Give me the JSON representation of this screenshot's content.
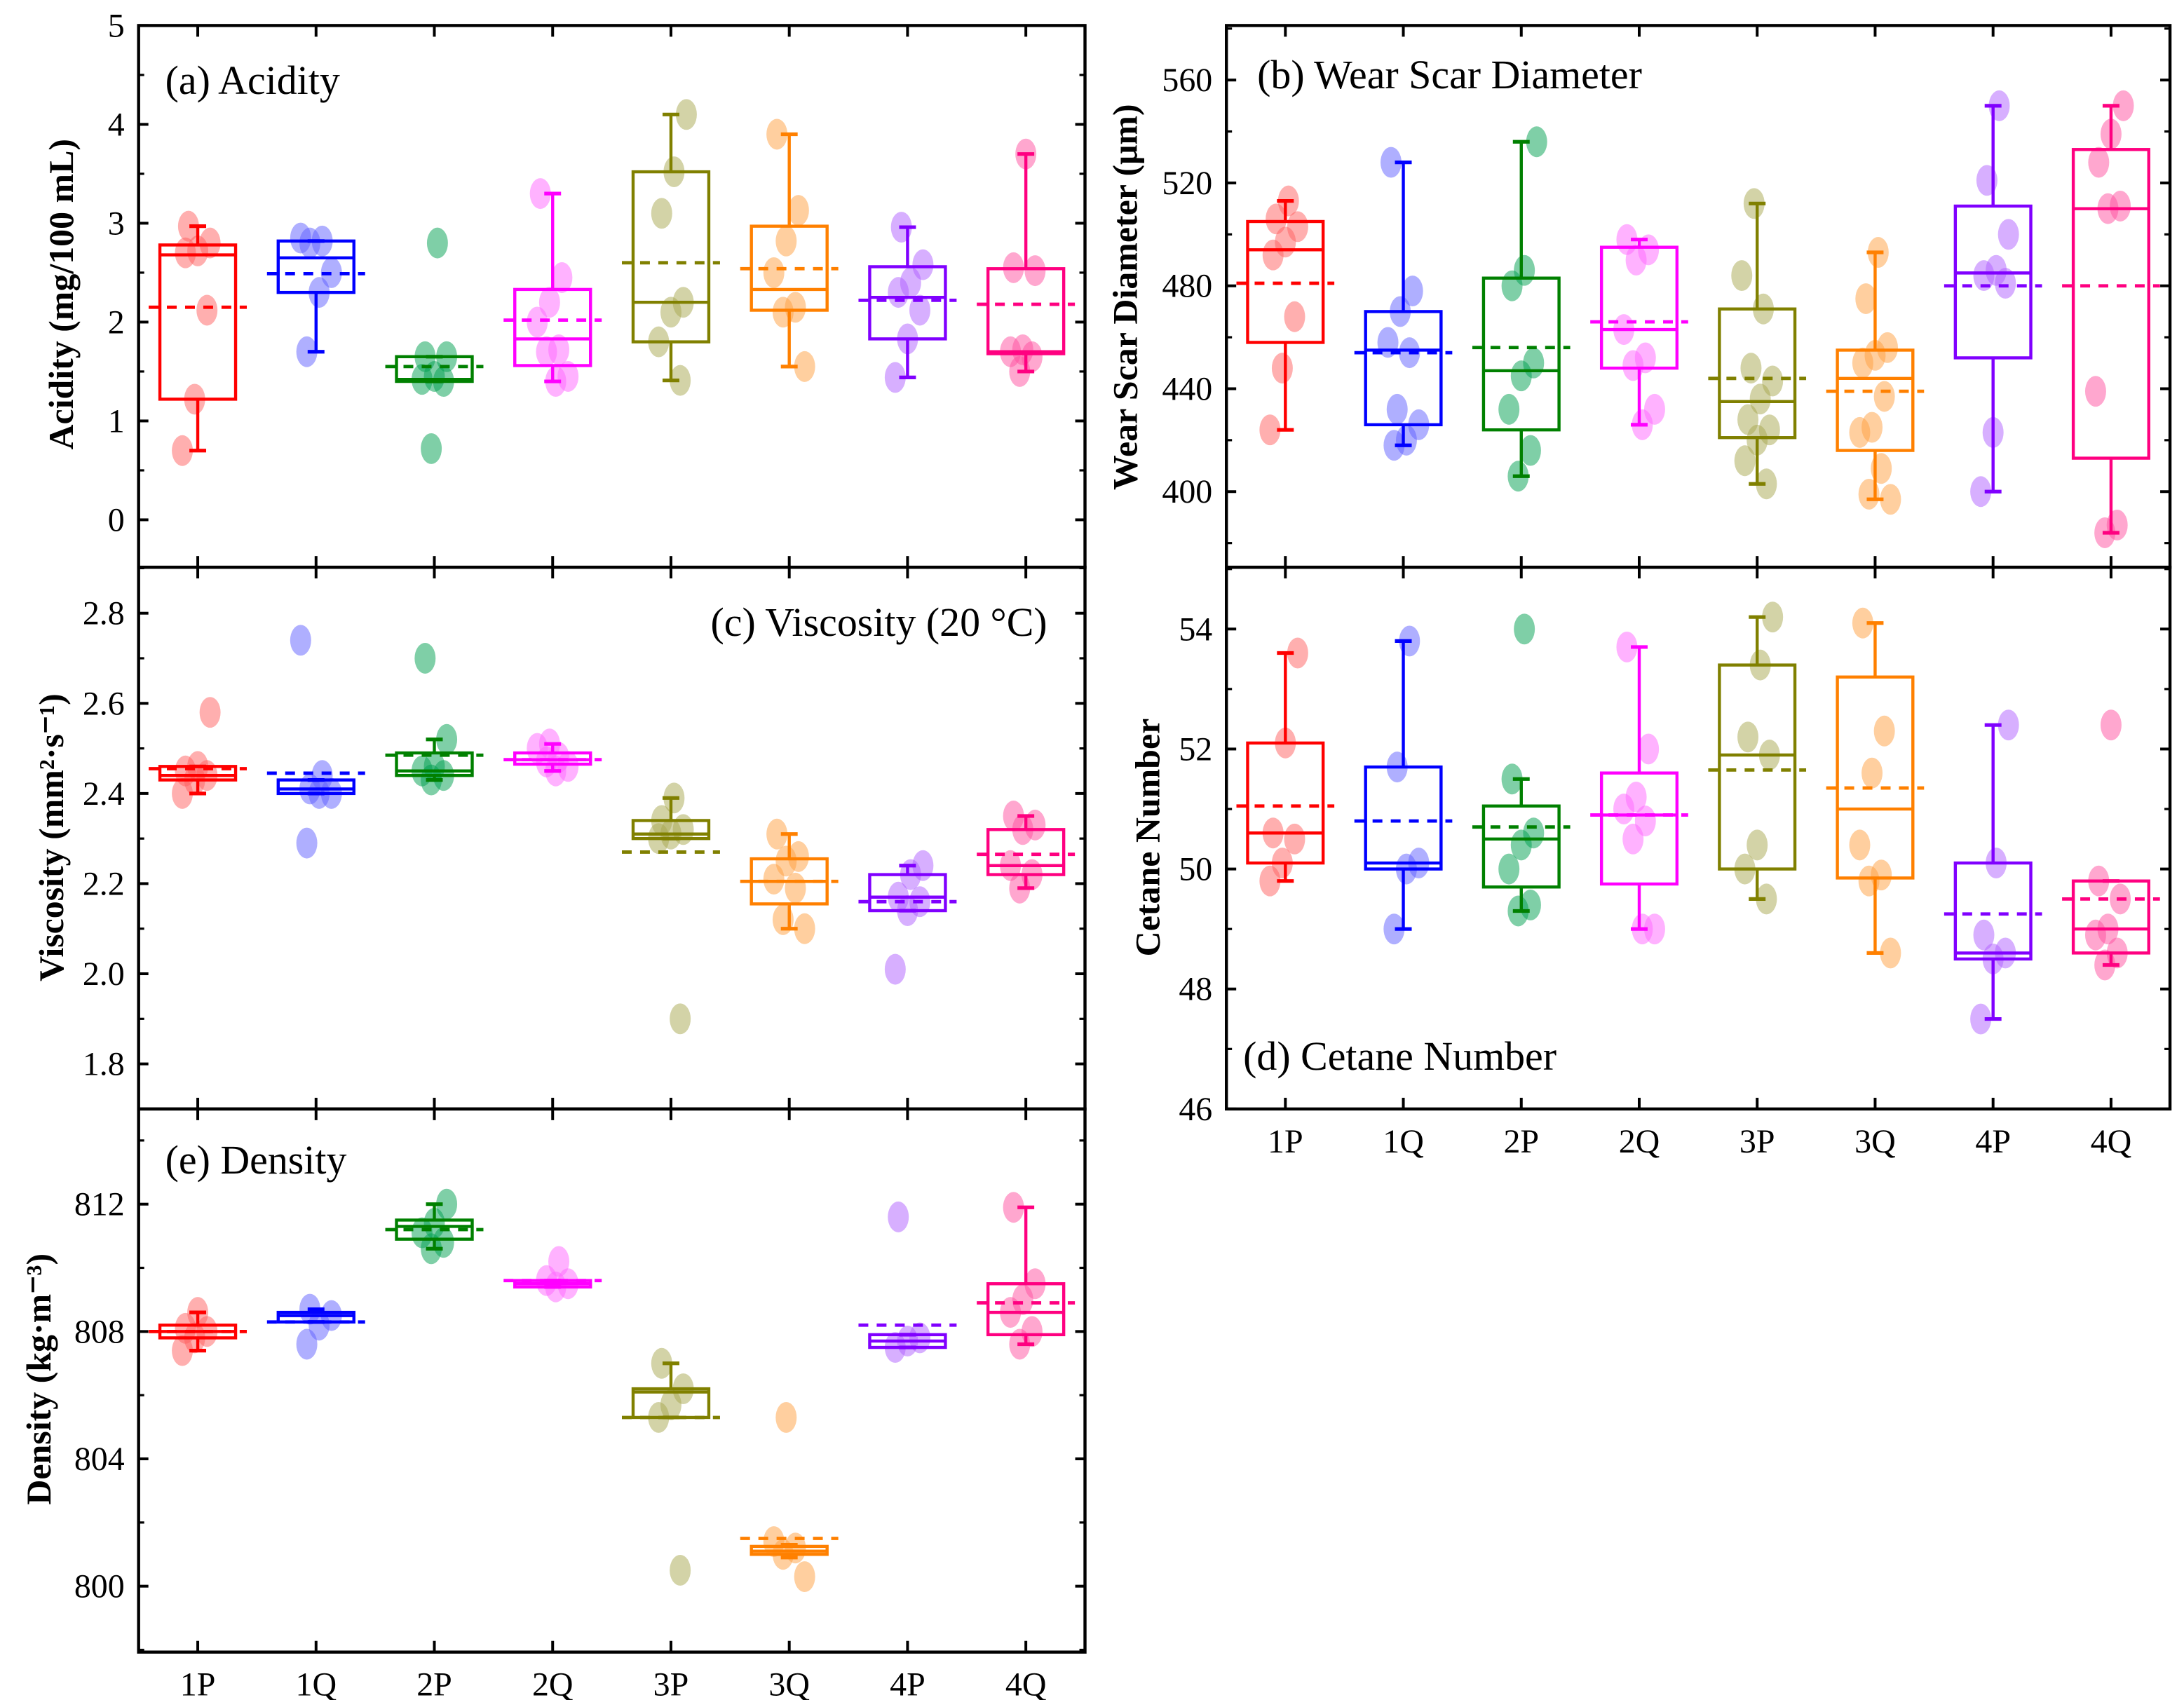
{
  "chart_data": [
    {
      "id": "a",
      "type": "box",
      "title": "(a) Acidity",
      "ylabel": "Acidity (mg/100 mL)",
      "ylim": [
        -0.48,
        5
      ],
      "yticks": [
        0,
        1,
        2,
        3,
        4,
        5
      ],
      "yminor": 0.5,
      "ytick_labels": [
        "0",
        "1",
        "2",
        "3",
        "4",
        "5"
      ],
      "categories": [
        "1P",
        "1Q",
        "2P",
        "2Q",
        "3P",
        "3Q",
        "4P",
        "4Q"
      ],
      "boxes": [
        {
          "q1": 1.22,
          "median": 2.68,
          "q3": 2.78,
          "whisker_low": 0.7,
          "whisker_high": 2.97,
          "mean": 2.15,
          "points": [
            0.7,
            1.22,
            2.12,
            2.7,
            2.72,
            2.8,
            2.97
          ]
        },
        {
          "q1": 2.3,
          "median": 2.65,
          "q3": 2.82,
          "whisker_low": 1.7,
          "whisker_high": 2.82,
          "mean": 2.49,
          "points": [
            1.7,
            2.3,
            2.5,
            2.8,
            2.82,
            2.85
          ]
        },
        {
          "q1": 1.4,
          "median": 1.42,
          "q3": 1.65,
          "whisker_low": 1.4,
          "whisker_high": 1.65,
          "mean": 1.55,
          "points": [
            0.72,
            1.4,
            1.42,
            1.45,
            1.65,
            1.65,
            2.8
          ]
        },
        {
          "q1": 1.56,
          "median": 1.83,
          "q3": 2.33,
          "whisker_low": 1.4,
          "whisker_high": 3.3,
          "mean": 2.02,
          "points": [
            1.4,
            1.45,
            1.7,
            1.72,
            2.0,
            2.2,
            2.45,
            3.3
          ]
        },
        {
          "q1": 1.8,
          "median": 2.2,
          "q3": 3.52,
          "whisker_low": 1.41,
          "whisker_high": 4.1,
          "mean": 2.6,
          "points": [
            1.41,
            1.8,
            2.1,
            2.2,
            3.1,
            3.52,
            4.1
          ]
        },
        {
          "q1": 2.12,
          "median": 2.33,
          "q3": 2.97,
          "whisker_low": 1.55,
          "whisker_high": 3.9,
          "mean": 2.54,
          "points": [
            1.55,
            2.1,
            2.15,
            2.5,
            2.82,
            3.13,
            3.9
          ]
        },
        {
          "q1": 1.83,
          "median": 2.25,
          "q3": 2.56,
          "whisker_low": 1.44,
          "whisker_high": 2.96,
          "mean": 2.22,
          "points": [
            1.44,
            1.83,
            2.12,
            2.3,
            2.4,
            2.58,
            2.96
          ]
        },
        {
          "q1": 1.68,
          "median": 1.7,
          "q3": 2.54,
          "whisker_low": 1.5,
          "whisker_high": 3.7,
          "mean": 2.18,
          "points": [
            1.5,
            1.65,
            1.7,
            1.72,
            2.52,
            2.55,
            3.7
          ]
        }
      ]
    },
    {
      "id": "b",
      "type": "box",
      "title": "(b) Wear Scar Diameter",
      "ylabel": "Wear Scar Diameter (μm)",
      "ylim": [
        370.6,
        581.2
      ],
      "yticks": [
        400,
        440,
        480,
        520,
        560
      ],
      "yminor": 20,
      "ytick_labels": [
        "400",
        "440",
        "480",
        "520",
        "560"
      ],
      "categories": [
        "1P",
        "1Q",
        "2P",
        "2Q",
        "3P",
        "3Q",
        "4P",
        "4Q"
      ],
      "boxes": [
        {
          "q1": 458,
          "median": 494,
          "q3": 505,
          "whisker_low": 424,
          "whisker_high": 513,
          "mean": 481,
          "points": [
            424,
            448,
            468,
            492,
            497,
            503,
            506,
            513
          ]
        },
        {
          "q1": 426,
          "median": 455,
          "q3": 470,
          "whisker_low": 418,
          "whisker_high": 528,
          "mean": 454,
          "points": [
            418,
            420,
            426,
            432,
            454,
            458,
            470,
            478,
            528
          ]
        },
        {
          "q1": 424,
          "median": 447,
          "q3": 483,
          "whisker_low": 406,
          "whisker_high": 536,
          "mean": 456,
          "points": [
            406,
            416,
            432,
            445,
            450,
            480,
            486,
            536
          ]
        },
        {
          "q1": 448,
          "median": 463,
          "q3": 495,
          "whisker_low": 426,
          "whisker_high": 498,
          "mean": 466,
          "points": [
            426,
            432,
            449,
            452,
            463,
            490,
            494,
            498
          ]
        },
        {
          "q1": 421,
          "median": 435,
          "q3": 471,
          "whisker_low": 403,
          "whisker_high": 512,
          "mean": 444,
          "points": [
            403,
            412,
            420,
            424,
            428,
            436,
            443,
            448,
            471,
            484,
            512
          ]
        },
        {
          "q1": 416,
          "median": 444,
          "q3": 455,
          "whisker_low": 397,
          "whisker_high": 493,
          "mean": 439,
          "points": [
            397,
            399,
            409,
            423,
            425,
            437,
            450,
            453,
            456,
            475,
            493
          ]
        },
        {
          "q1": 452,
          "median": 485,
          "q3": 511,
          "whisker_low": 400,
          "whisker_high": 550,
          "mean": 480,
          "points": [
            400,
            423,
            481,
            484,
            486,
            500,
            521,
            550
          ]
        },
        {
          "q1": 413,
          "median": 510,
          "q3": 533,
          "whisker_low": 384,
          "whisker_high": 550,
          "mean": 480,
          "points": [
            384,
            387,
            439,
            510,
            511,
            528,
            539,
            550
          ]
        }
      ]
    },
    {
      "id": "c",
      "type": "box",
      "title": "(c) Viscosity (20 °C)",
      "ylabel": "Viscosity (mm²·s⁻¹)",
      "ylim": [
        1.7,
        2.902
      ],
      "yticks": [
        1.8,
        2.0,
        2.2,
        2.4,
        2.6,
        2.8
      ],
      "yminor": 0.1,
      "ytick_labels": [
        "1.8",
        "2.0",
        "2.2",
        "2.4",
        "2.6",
        "2.8"
      ],
      "categories": [
        "1P",
        "1Q",
        "2P",
        "2Q",
        "3P",
        "3Q",
        "4P",
        "4Q"
      ],
      "boxes": [
        {
          "q1": 2.43,
          "median": 2.44,
          "q3": 2.46,
          "whisker_low": 2.4,
          "whisker_high": 2.46,
          "mean": 2.455,
          "points": [
            2.4,
            2.43,
            2.44,
            2.45,
            2.46,
            2.58
          ]
        },
        {
          "q1": 2.4,
          "median": 2.41,
          "q3": 2.43,
          "whisker_low": 2.4,
          "whisker_high": 2.43,
          "mean": 2.445,
          "points": [
            2.29,
            2.4,
            2.4,
            2.41,
            2.44,
            2.74
          ]
        },
        {
          "q1": 2.44,
          "median": 2.45,
          "q3": 2.49,
          "whisker_low": 2.43,
          "whisker_high": 2.52,
          "mean": 2.485,
          "points": [
            2.43,
            2.44,
            2.45,
            2.46,
            2.52,
            2.7
          ]
        },
        {
          "q1": 2.465,
          "median": 2.475,
          "q3": 2.49,
          "whisker_low": 2.45,
          "whisker_high": 2.51,
          "mean": 2.475,
          "points": [
            2.45,
            2.46,
            2.47,
            2.48,
            2.5,
            2.51
          ]
        },
        {
          "q1": 2.3,
          "median": 2.31,
          "q3": 2.34,
          "whisker_low": 2.3,
          "whisker_high": 2.39,
          "mean": 2.27,
          "points": [
            1.9,
            2.3,
            2.31,
            2.32,
            2.34,
            2.39
          ]
        },
        {
          "q1": 2.155,
          "median": 2.205,
          "q3": 2.255,
          "whisker_low": 2.1,
          "whisker_high": 2.31,
          "mean": 2.205,
          "points": [
            2.1,
            2.12,
            2.19,
            2.21,
            2.25,
            2.26,
            2.31
          ]
        },
        {
          "q1": 2.14,
          "median": 2.17,
          "q3": 2.22,
          "whisker_low": 2.14,
          "whisker_high": 2.24,
          "mean": 2.16,
          "points": [
            2.01,
            2.14,
            2.16,
            2.17,
            2.22,
            2.24
          ]
        },
        {
          "q1": 2.22,
          "median": 2.24,
          "q3": 2.32,
          "whisker_low": 2.19,
          "whisker_high": 2.35,
          "mean": 2.265,
          "points": [
            2.19,
            2.22,
            2.24,
            2.32,
            2.33,
            2.35
          ]
        }
      ]
    },
    {
      "id": "d",
      "type": "box",
      "title": "(d) Cetane Number",
      "ylabel": "Cetane Number",
      "ylim": [
        46,
        55.03
      ],
      "yticks": [
        46,
        48,
        50,
        52,
        54
      ],
      "yminor": 1,
      "ytick_labels": [
        "46",
        "48",
        "50",
        "52",
        "54"
      ],
      "categories": [
        "1P",
        "1Q",
        "2P",
        "2Q",
        "3P",
        "3Q",
        "4P",
        "4Q"
      ],
      "boxes": [
        {
          "q1": 50.1,
          "median": 50.6,
          "q3": 52.1,
          "whisker_low": 49.8,
          "whisker_high": 53.6,
          "mean": 51.05,
          "points": [
            49.8,
            50.1,
            50.5,
            50.6,
            52.1,
            53.6
          ]
        },
        {
          "q1": 50.0,
          "median": 50.1,
          "q3": 51.7,
          "whisker_low": 49.0,
          "whisker_high": 53.8,
          "mean": 50.8,
          "points": [
            49.0,
            50.0,
            50.1,
            51.7,
            53.8
          ]
        },
        {
          "q1": 49.7,
          "median": 50.5,
          "q3": 51.05,
          "whisker_low": 49.3,
          "whisker_high": 51.5,
          "mean": 50.7,
          "points": [
            49.3,
            49.4,
            50.0,
            50.4,
            50.6,
            51.5,
            54.0
          ]
        },
        {
          "q1": 49.75,
          "median": 50.9,
          "q3": 51.6,
          "whisker_low": 49.0,
          "whisker_high": 53.7,
          "mean": 50.9,
          "points": [
            49.0,
            49.0,
            50.5,
            50.8,
            51.0,
            51.2,
            52.0,
            53.7
          ]
        },
        {
          "q1": 50.0,
          "median": 51.9,
          "q3": 53.4,
          "whisker_low": 49.5,
          "whisker_high": 54.2,
          "mean": 51.65,
          "points": [
            49.5,
            50.0,
            50.4,
            51.9,
            52.2,
            53.4,
            54.2
          ]
        },
        {
          "q1": 49.85,
          "median": 51.0,
          "q3": 53.2,
          "whisker_low": 48.6,
          "whisker_high": 54.1,
          "mean": 51.35,
          "points": [
            48.6,
            49.8,
            49.9,
            50.4,
            51.6,
            52.3,
            54.1
          ]
        },
        {
          "q1": 48.5,
          "median": 48.6,
          "q3": 50.1,
          "whisker_low": 47.5,
          "whisker_high": 52.4,
          "mean": 49.25,
          "points": [
            47.5,
            48.5,
            48.6,
            48.9,
            50.1,
            52.4
          ]
        },
        {
          "q1": 48.6,
          "median": 49.0,
          "q3": 49.8,
          "whisker_low": 48.4,
          "whisker_high": 49.8,
          "mean": 49.5,
          "points": [
            48.4,
            48.6,
            48.9,
            49.0,
            49.5,
            49.8,
            52.4
          ]
        }
      ]
    },
    {
      "id": "e",
      "type": "box",
      "title": "(e) Density",
      "ylabel": "Density (kg·m⁻³)",
      "ylim": [
        797.93,
        814.99
      ],
      "yticks": [
        800,
        804,
        808,
        812
      ],
      "yminor": 2,
      "ytick_labels": [
        "800",
        "804",
        "808",
        "812"
      ],
      "categories": [
        "1P",
        "1Q",
        "2P",
        "2Q",
        "3P",
        "3Q",
        "4P",
        "4Q"
      ],
      "boxes": [
        {
          "q1": 807.8,
          "median": 808.0,
          "q3": 808.2,
          "whisker_low": 807.4,
          "whisker_high": 808.6,
          "mean": 808.0,
          "points": [
            807.4,
            807.8,
            808.0,
            808.1,
            808.6
          ]
        },
        {
          "q1": 808.3,
          "median": 808.5,
          "q3": 808.6,
          "whisker_low": 808.3,
          "whisker_high": 808.7,
          "mean": 808.3,
          "points": [
            807.6,
            808.2,
            808.5,
            808.7
          ]
        },
        {
          "q1": 810.9,
          "median": 811.3,
          "q3": 811.5,
          "whisker_low": 810.6,
          "whisker_high": 812.0,
          "mean": 811.2,
          "points": [
            810.6,
            810.8,
            811.1,
            811.4,
            812.0
          ]
        },
        {
          "q1": 809.4,
          "median": 809.5,
          "q3": 809.6,
          "whisker_low": 809.4,
          "whisker_high": 809.6,
          "mean": 809.6,
          "points": [
            809.4,
            809.5,
            809.6,
            810.2
          ]
        },
        {
          "q1": 805.3,
          "median": 806.1,
          "q3": 806.2,
          "whisker_low": 805.3,
          "whisker_high": 807.0,
          "mean": 805.3,
          "points": [
            800.5,
            805.3,
            805.7,
            806.2,
            807.0
          ]
        },
        {
          "q1": 801.0,
          "median": 801.1,
          "q3": 801.25,
          "whisker_low": 800.9,
          "whisker_high": 801.3,
          "mean": 801.5,
          "points": [
            800.3,
            801.0,
            801.2,
            801.4,
            805.3
          ]
        },
        {
          "q1": 807.5,
          "median": 807.7,
          "q3": 807.9,
          "whisker_low": 807.5,
          "whisker_high": 807.9,
          "mean": 808.2,
          "points": [
            807.5,
            807.7,
            807.8,
            811.6
          ]
        },
        {
          "q1": 807.9,
          "median": 808.6,
          "q3": 809.5,
          "whisker_low": 807.6,
          "whisker_high": 811.9,
          "mean": 808.9,
          "points": [
            807.6,
            808.0,
            808.6,
            809.0,
            809.5,
            811.9
          ]
        }
      ]
    }
  ],
  "colors": {
    "lines": [
      "#ff0000",
      "#0000ff",
      "#008000",
      "#ff00ff",
      "#808000",
      "#ff8000",
      "#8000ff",
      "#ff0080"
    ],
    "points": [
      "#ff6060",
      "#6060ff",
      "#00a050",
      "#ff66ff",
      "#a8a850",
      "#ffa040",
      "#b060ff",
      "#ff50a0"
    ]
  }
}
